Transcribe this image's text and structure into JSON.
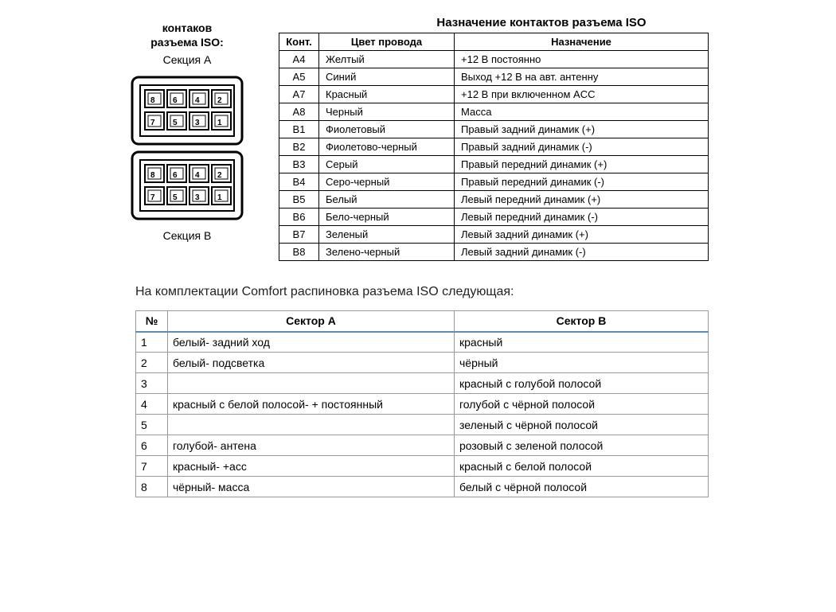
{
  "connector": {
    "title_line1": "контаков",
    "title_line2": "разъема ISO:",
    "section_a": "Секция А",
    "section_b": "Секция В",
    "pins_top": [
      "8",
      "6",
      "4",
      "2",
      "7",
      "5",
      "3",
      "1"
    ],
    "pins_bottom": [
      "8",
      "6",
      "4",
      "2",
      "7",
      "5",
      "3",
      "1"
    ]
  },
  "pin_table": {
    "title": "Назначение контактов разъема ISO",
    "columns": [
      "Конт.",
      "Цвет провода",
      "Назначение"
    ],
    "rows": [
      [
        "A4",
        "Желтый",
        "+12 В постоянно"
      ],
      [
        "A5",
        "Синий",
        "Выход +12 В на авт. антенну"
      ],
      [
        "A7",
        "Красный",
        "+12 В при включенном ACC"
      ],
      [
        "A8",
        "Черный",
        "Масса"
      ],
      [
        "B1",
        "Фиолетовый",
        "Правый задний динамик (+)"
      ],
      [
        "B2",
        "Фиолетово-черный",
        "Правый задний динамик (-)"
      ],
      [
        "B3",
        "Серый",
        "Правый передний динамик (+)"
      ],
      [
        "B4",
        "Серо-черный",
        "Правый передний динамик (-)"
      ],
      [
        "B5",
        "Белый",
        "Левый передний динамик (+)"
      ],
      [
        "B6",
        "Бело-черный",
        "Левый передний динамик (-)"
      ],
      [
        "B7",
        "Зеленый",
        "Левый задний динамик (+)"
      ],
      [
        "B8",
        "Зелено-черный",
        "Левый задний динамик (-)"
      ]
    ]
  },
  "comfort": {
    "intro": "На комплектации Comfort распиновка разъема ISO следующая:",
    "columns": [
      "№",
      "Сектор А",
      "Сектор В"
    ],
    "rows": [
      [
        "1",
        "белый- задний ход",
        "красный"
      ],
      [
        "2",
        "белый- подсветка",
        "чёрный"
      ],
      [
        "3",
        "",
        "красный с голубой полосой"
      ],
      [
        "4",
        "красный с белой полосой- + постоянный",
        "голубой с чёрной полосой"
      ],
      [
        "5",
        "",
        "зеленый с чёрной полосой"
      ],
      [
        "6",
        "голубой- антена",
        "розовый с зеленой полосой"
      ],
      [
        "7",
        "красный- +асс",
        "красный с белой полосой"
      ],
      [
        "8",
        "чёрный- масса",
        "белый с чёрной полосой"
      ]
    ]
  },
  "style": {
    "page_bg": "#ffffff",
    "text_color": "#000000",
    "table_border": "#000000",
    "comfort_border": "#999999",
    "comfort_header_underline": "#5b8fb9",
    "font_family": "Arial",
    "pin_font_size": 13,
    "comfort_font_size": 14
  }
}
